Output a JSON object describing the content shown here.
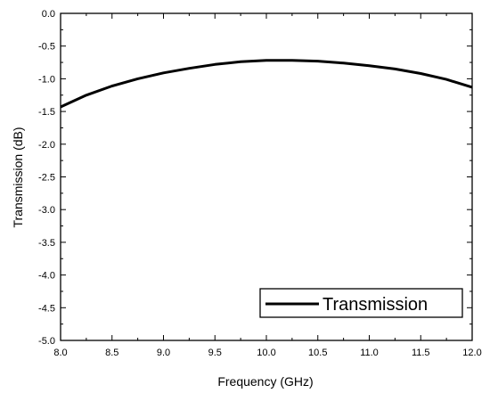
{
  "chart_data": {
    "type": "line",
    "xlabel": "Frequency (GHz)",
    "ylabel": "Transmission (dB)",
    "xlim": [
      8.0,
      12.0
    ],
    "ylim": [
      -5.0,
      0.0
    ],
    "xticks": [
      "8.0",
      "8.5",
      "9.0",
      "9.5",
      "10.0",
      "10.5",
      "11.0",
      "11.5",
      "12.0"
    ],
    "yticks": [
      "0.0",
      "-0.5",
      "-1.0",
      "-1.5",
      "-2.0",
      "-2.5",
      "-3.0",
      "-3.5",
      "-4.0",
      "-4.5",
      "-5.0"
    ],
    "grid": false,
    "legend_position": "bottom-right",
    "series": [
      {
        "name": "Transmission",
        "color": "#000000",
        "x": [
          8.0,
          8.25,
          8.5,
          8.75,
          9.0,
          9.25,
          9.5,
          9.75,
          10.0,
          10.25,
          10.5,
          10.75,
          11.0,
          11.25,
          11.5,
          11.75,
          12.0
        ],
        "y": [
          -1.43,
          -1.25,
          -1.11,
          -1.0,
          -0.91,
          -0.84,
          -0.78,
          -0.74,
          -0.72,
          -0.72,
          -0.73,
          -0.76,
          -0.8,
          -0.85,
          -0.92,
          -1.01,
          -1.13
        ]
      }
    ]
  }
}
